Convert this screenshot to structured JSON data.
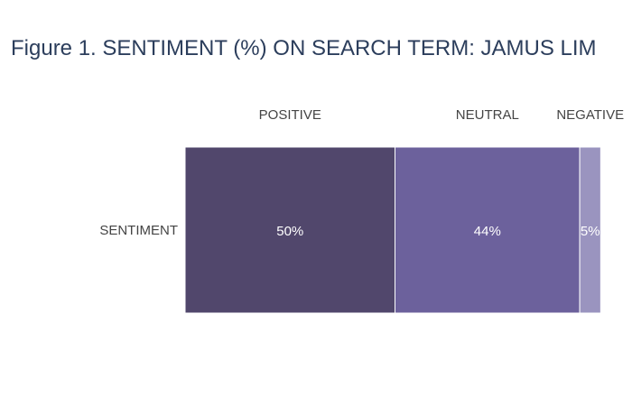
{
  "title": "Figure 1. SENTIMENT (%) ON SEARCH TERM: JAMUS LIM",
  "chart_data": {
    "type": "bar",
    "orientation": "horizontal-stacked-100",
    "categories": [
      "SENTIMENT"
    ],
    "series": [
      {
        "name": "POSITIVE",
        "values": [
          50
        ],
        "label": "50%",
        "color": "#51476c"
      },
      {
        "name": "NEUTRAL",
        "values": [
          44
        ],
        "label": "44%",
        "color": "#6c619c"
      },
      {
        "name": "NEGATIVE",
        "values": [
          5
        ],
        "label": "5%",
        "color": "#9a94bf"
      }
    ],
    "xlim": [
      0,
      100
    ],
    "legend": "top",
    "grid": false
  }
}
